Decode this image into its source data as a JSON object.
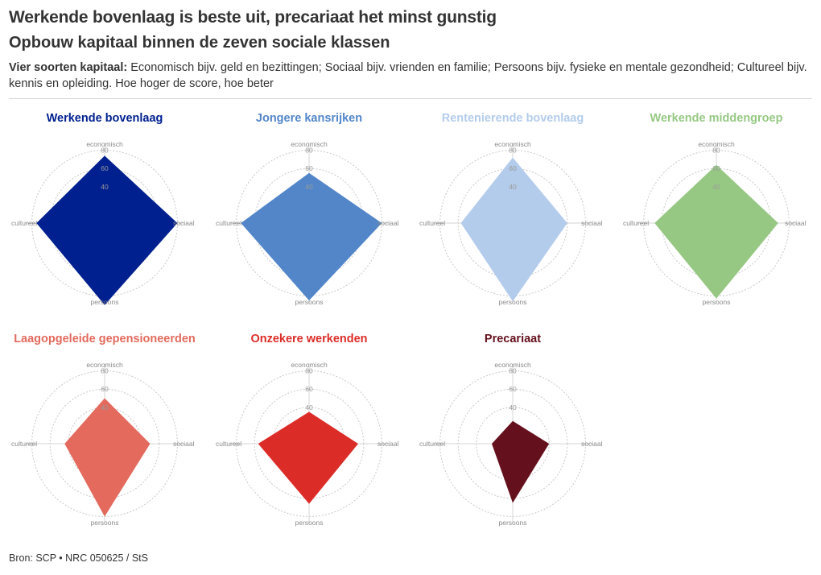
{
  "header": {
    "title": "Werkende bovenlaag is beste uit, precariaat het minst gunstig",
    "subtitle": "Opbouw kapitaal binnen de zeven sociale klassen",
    "description_bold": "Vier soorten kapitaal:",
    "description_text": " Economisch bijv. geld en bezittingen; Sociaal bijv. vrienden en familie; Persoons bijv. fysieke en mentale gezondheid; Cultureel bijv. kennis en opleiding. Hoe hoger de score, hoe beter"
  },
  "footer": {
    "source": "Bron: SCP • NRC 050625 / StS"
  },
  "chart_data": {
    "type": "radar",
    "axes": [
      "economisch",
      "sociaal",
      "persoons",
      "cultureel"
    ],
    "rmax": 100,
    "ticks": [
      40,
      60,
      80
    ],
    "grid": true,
    "series": [
      {
        "name": "Werkende bovenlaag",
        "color": "#00208f",
        "values": {
          "economisch": 74,
          "sociaal": 80,
          "persoons": 90,
          "cultureel": 75
        }
      },
      {
        "name": "Jongere kansrijken",
        "color": "#5286c9",
        "values": {
          "economisch": 55,
          "sociaal": 80,
          "persoons": 85,
          "cultureel": 75
        }
      },
      {
        "name": "Rentenierende bovenlaag",
        "color": "#b3cceb",
        "values": {
          "economisch": 72,
          "sociaal": 60,
          "persoons": 86,
          "cultureel": 57
        }
      },
      {
        "name": "Werkende middengroep",
        "color": "#96c883",
        "values": {
          "economisch": 64,
          "sociaal": 68,
          "persoons": 83,
          "cultureel": 68
        }
      },
      {
        "name": "Laagopgeleide gepensioneerden",
        "color": "#e36a5d",
        "values": {
          "economisch": 50,
          "sociaal": 50,
          "persoons": 80,
          "cultureel": 44
        }
      },
      {
        "name": "Onzekere werkenden",
        "color": "#dc2c27",
        "values": {
          "economisch": 35,
          "sociaal": 54,
          "persoons": 66,
          "cultureel": 56
        }
      },
      {
        "name": "Precariaat",
        "color": "#65101d",
        "values": {
          "economisch": 25,
          "sociaal": 40,
          "persoons": 65,
          "cultureel": 23
        }
      }
    ]
  }
}
